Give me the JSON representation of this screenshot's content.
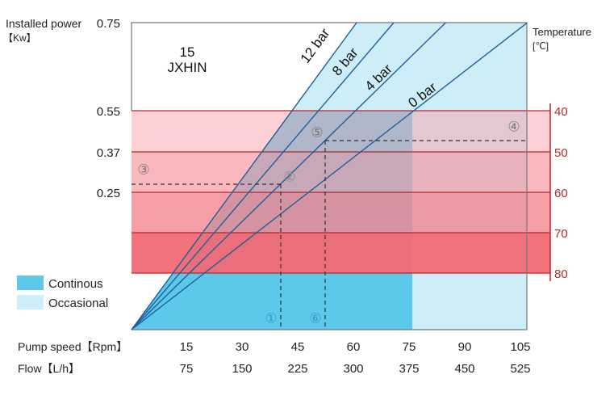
{
  "chart_data": {
    "type": "line",
    "title": "15",
    "subtitle": "JXHIN",
    "ylabel": "Installed power",
    "ylabel_unit": "【Kw】",
    "y_ticks": [
      "0.75",
      "0.55",
      "0.37",
      "0.25"
    ],
    "y2label": "Temperature",
    "y2label_unit": "[℃]",
    "y2_ticks": [
      "40",
      "50",
      "60",
      "70",
      "80"
    ],
    "x_rows": [
      {
        "label": "Pump speed【Rpm】",
        "ticks": [
          "15",
          "30",
          "45",
          "60",
          "75",
          "90",
          "105"
        ]
      },
      {
        "label": "Flow【L/h】",
        "ticks": [
          "75",
          "150",
          "225",
          "300",
          "375",
          "450",
          "525"
        ]
      }
    ],
    "xlim_rpm": [
      0,
      105
    ],
    "series": [
      {
        "name": "12 bar",
        "rpm_at_max_power": 60
      },
      {
        "name": "8 bar",
        "rpm_at_max_power": 70
      },
      {
        "name": "4 bar",
        "rpm_at_max_power": 84
      },
      {
        "name": "0 bar",
        "rpm_at_max_power": 106
      }
    ],
    "legend": [
      {
        "label": "Continous",
        "color": "#5cc8ea"
      },
      {
        "label": "Occasional",
        "color": "#cdeef8"
      }
    ],
    "continuous_max_rpm": 75,
    "annotations": [
      "①",
      "②",
      "③",
      "④",
      "⑤",
      "⑥"
    ],
    "colors": {
      "line": "#1f5f9a",
      "temp": "#b8262e",
      "band_light": "#f7b9bf",
      "band_dark": "#f26a74"
    }
  }
}
